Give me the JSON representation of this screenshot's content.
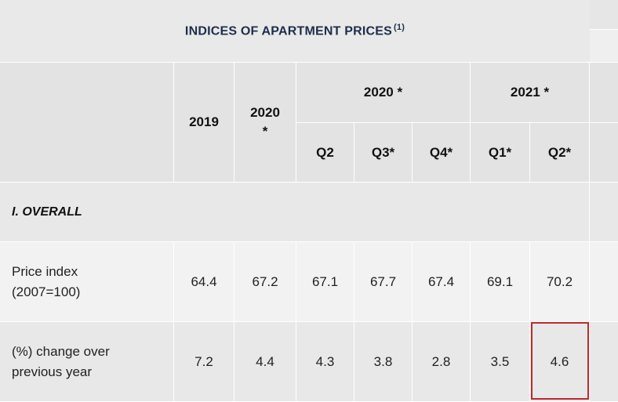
{
  "table": {
    "title": "INDICES OF APARTMENT PRICES",
    "title_note": "(1)",
    "header": {
      "col_2019": "2019",
      "col_2020_year": "2020",
      "col_2020_year_mark": "*",
      "group_2020": "2020 *",
      "group_2021": "2021 *",
      "quarters": [
        "Q2",
        "Q3*",
        "Q4*",
        "Q1*",
        "Q2*"
      ]
    },
    "section_label": "I. OVERALL",
    "rows": [
      {
        "label_line1": "Price index",
        "label_line2": "(2007=100)",
        "values": [
          "64.4",
          "67.2",
          "67.1",
          "67.7",
          "67.4",
          "69.1",
          "70.2"
        ]
      },
      {
        "label_line1": "(%) change over",
        "label_line2": "previous year",
        "values": [
          "7.2",
          "4.4",
          "4.3",
          "3.8",
          "2.8",
          "3.5",
          "4.6"
        ]
      }
    ],
    "highlight_color": "#c0282d"
  }
}
